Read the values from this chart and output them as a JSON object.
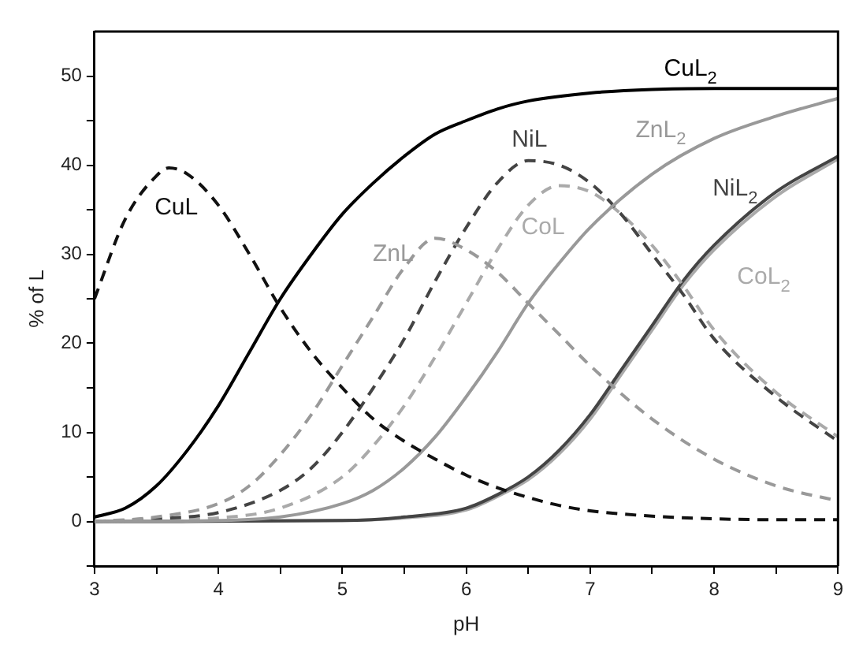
{
  "chart_data": {
    "type": "line",
    "xlabel": "pH",
    "ylabel": "% of L",
    "xlim": [
      3,
      9
    ],
    "xticks": [
      3,
      {
        "value": 3.5,
        "label": null
      },
      4,
      {
        "value": 4.5,
        "label": null
      },
      5,
      {
        "value": 5.5,
        "label": null
      },
      6,
      {
        "value": 6.5,
        "label": null
      },
      7,
      {
        "value": 7.5,
        "label": null
      },
      8,
      {
        "value": 8.5,
        "label": null
      },
      9
    ],
    "ylim": [
      -5,
      55
    ],
    "yticks": [
      {
        "value": -5,
        "label": null
      },
      0,
      {
        "value": 5,
        "label": null
      },
      10,
      {
        "value": 15,
        "label": null
      },
      20,
      {
        "value": 25,
        "label": null
      },
      30,
      {
        "value": 35,
        "label": null
      },
      40,
      {
        "value": 45,
        "label": null
      },
      50
    ],
    "grid": false,
    "legend": false,
    "marker": "none",
    "series": [
      {
        "name": "CuL",
        "color": "#111111",
        "line_style": "dashed",
        "x": [
          3,
          3.25,
          3.5,
          3.6,
          3.75,
          4,
          4.25,
          4.5,
          4.75,
          5,
          5.25,
          5.5,
          5.75,
          6,
          6.25,
          6.5,
          6.75,
          7,
          7.5,
          8,
          8.5,
          9
        ],
        "values": [
          25,
          34,
          38.8,
          39.7,
          39,
          35.5,
          30,
          24,
          19,
          15,
          11.5,
          9,
          7,
          5.2,
          3.8,
          2.7,
          1.8,
          1.2,
          0.6,
          0.3,
          0.2,
          0.2
        ]
      },
      {
        "name": "CuL$_{2}$",
        "color": "#000000",
        "line_style": "solid",
        "x": [
          3,
          3.25,
          3.5,
          3.75,
          4,
          4.25,
          4.5,
          4.75,
          5,
          5.25,
          5.5,
          5.75,
          6,
          6.25,
          6.5,
          7,
          7.5,
          8,
          9
        ],
        "values": [
          0.5,
          1.5,
          4,
          8,
          13,
          19,
          25,
          30,
          34.5,
          38,
          41,
          43.5,
          45,
          46.3,
          47.2,
          48.1,
          48.5,
          48.6,
          48.6
        ]
      },
      {
        "name": "ZnL",
        "color": "#999999",
        "line_style": "dashed",
        "x": [
          3,
          3.5,
          4,
          4.25,
          4.5,
          4.75,
          5,
          5.25,
          5.5,
          5.75,
          6,
          6.25,
          6.5,
          6.75,
          7,
          7.5,
          8,
          8.5,
          9
        ],
        "values": [
          0,
          0.5,
          2,
          4,
          7.5,
          12,
          17.5,
          23,
          28.5,
          31.8,
          30.5,
          28,
          24.5,
          21,
          17.5,
          11.5,
          7,
          4,
          2.3
        ]
      },
      {
        "name": "ZnL$_{2}$",
        "color": "#999999",
        "line_style": "solid",
        "x": [
          3,
          4,
          4.5,
          5,
          5.25,
          5.5,
          5.75,
          6,
          6.25,
          6.5,
          6.75,
          7,
          7.5,
          8,
          8.5,
          9
        ],
        "values": [
          0,
          0.1,
          0.5,
          2,
          3.5,
          6,
          9.5,
          14,
          19,
          24.5,
          29,
          33,
          39,
          43,
          45.5,
          47.5
        ]
      },
      {
        "name": "NiL",
        "color": "#444444",
        "line_style": "dashed",
        "x": [
          3,
          3.5,
          4,
          4.5,
          4.75,
          5,
          5.25,
          5.5,
          5.75,
          6,
          6.25,
          6.5,
          6.75,
          7,
          7.25,
          7.5,
          7.75,
          8,
          8.5,
          9
        ],
        "values": [
          0,
          0.3,
          1,
          3.5,
          6,
          10,
          15,
          20.5,
          27,
          33,
          38,
          40.5,
          40,
          38,
          34.5,
          30,
          25.5,
          20.5,
          14,
          9
        ]
      },
      {
        "name": "CoL",
        "color": "#aaaaaa",
        "line_style": "dashed",
        "x": [
          3,
          4,
          4.5,
          5,
          5.25,
          5.5,
          5.75,
          6,
          6.25,
          6.5,
          6.75,
          7,
          7.25,
          7.5,
          7.75,
          8,
          8.5,
          9
        ],
        "values": [
          0,
          0.4,
          1.5,
          5,
          8.5,
          13,
          18.5,
          24.5,
          30.5,
          35.5,
          37.7,
          37,
          34.5,
          31,
          26.5,
          21.5,
          14.5,
          9.5
        ]
      },
      {
        "name": "NiL$_{2}$",
        "color": "#444444",
        "line_style": "solid",
        "x": [
          3,
          5,
          5.5,
          6,
          6.25,
          6.5,
          6.75,
          7,
          7.25,
          7.5,
          7.75,
          8,
          8.5,
          9
        ],
        "values": [
          0,
          0.1,
          0.5,
          1.5,
          3,
          5,
          8,
          12,
          17,
          22,
          27,
          31,
          37,
          41
        ]
      },
      {
        "name": "CoL$_{2}$",
        "color": "#aaaaaa",
        "line_style": "solid",
        "x": [
          3,
          5,
          5.5,
          6,
          6.25,
          6.5,
          6.75,
          7,
          7.25,
          7.5,
          7.75,
          8,
          8.5,
          9
        ],
        "values": [
          0,
          0.1,
          0.4,
          1.3,
          2.8,
          4.7,
          7.6,
          11.5,
          16.5,
          21.5,
          26.5,
          30.5,
          36.5,
          40.7
        ]
      }
    ]
  }
}
